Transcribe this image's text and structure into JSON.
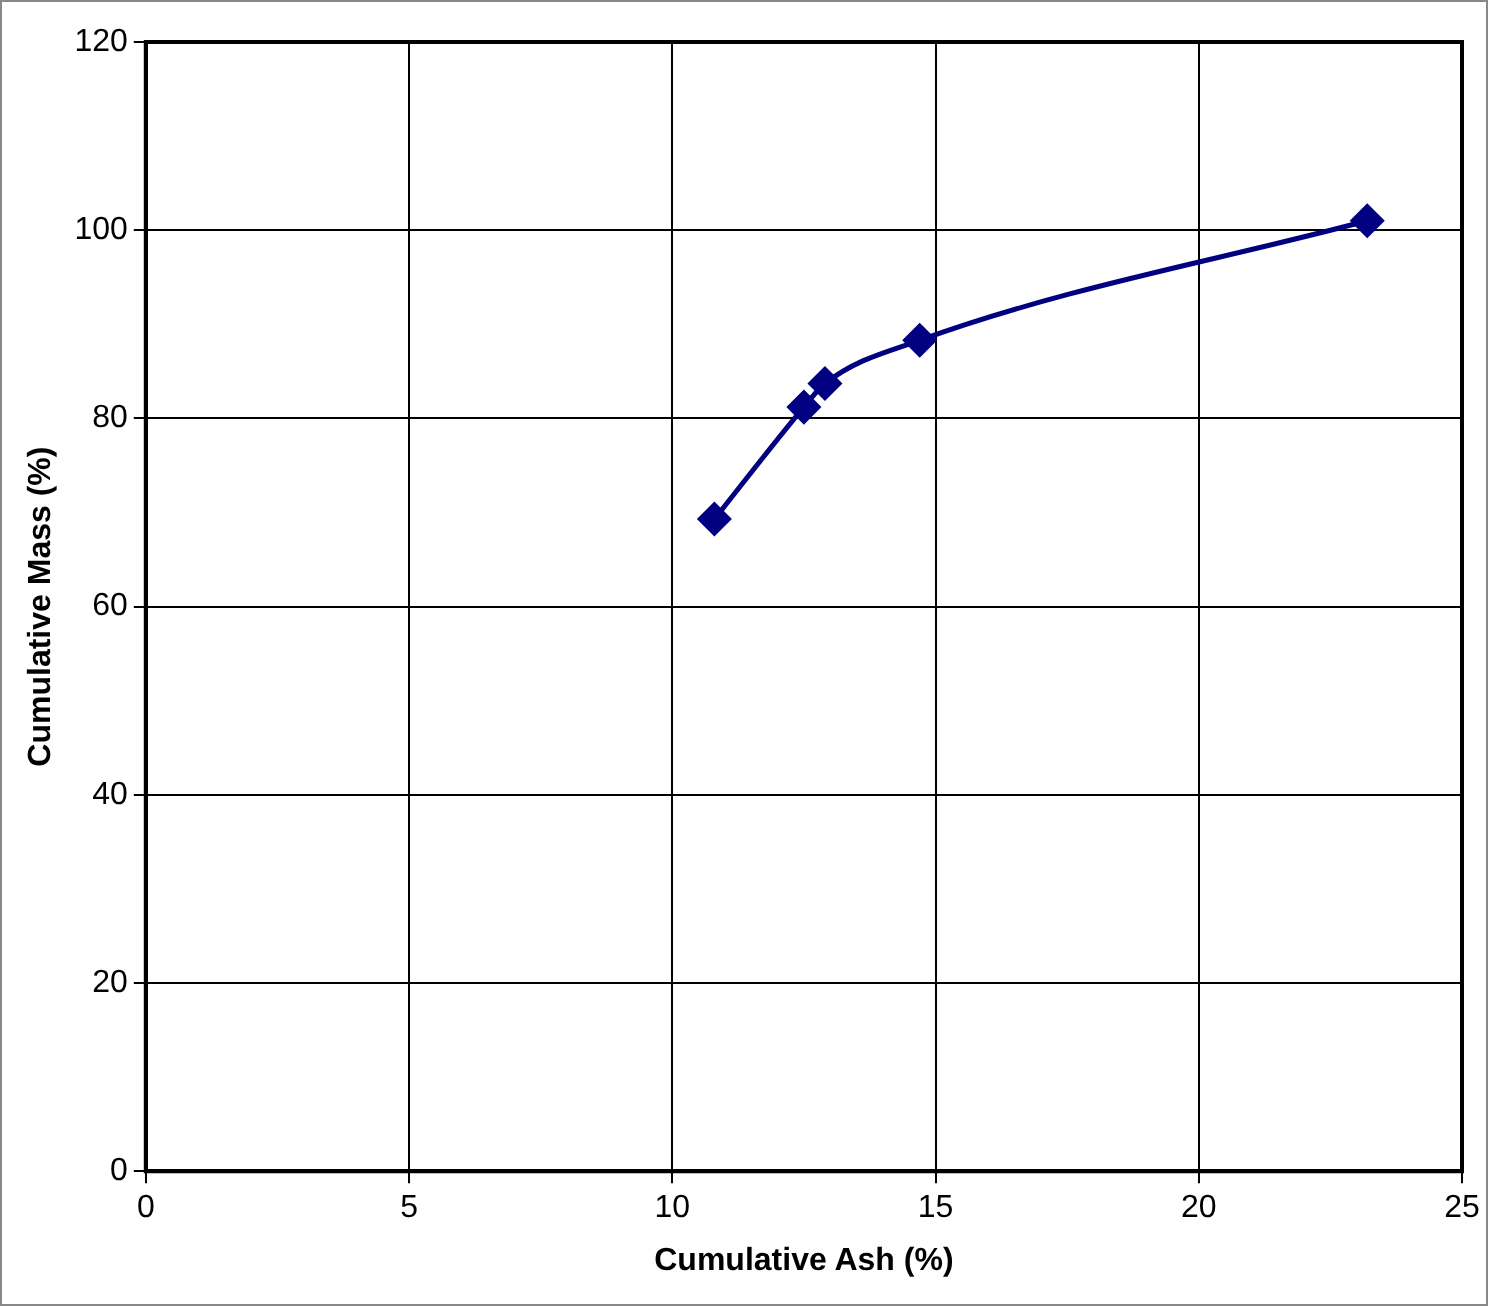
{
  "chart_data": {
    "type": "line",
    "xlabel": "Cumulative Ash (%)",
    "ylabel": "Cumulative Mass (%)",
    "x": [
      10.8,
      12.5,
      12.9,
      14.7,
      23.2
    ],
    "series": [
      {
        "color": "#000080",
        "values": [
          69.3,
          81.2,
          83.7,
          88.3,
          101.0
        ]
      }
    ],
    "xlim": [
      0,
      25
    ],
    "xticks": [
      0,
      5,
      10,
      15,
      20,
      25
    ],
    "ylim": [
      0,
      120
    ],
    "yticks": [
      0,
      20,
      40,
      60,
      80,
      100,
      120
    ],
    "grid": true,
    "legend": false,
    "marker": "diamond",
    "line_style": "solid"
  }
}
